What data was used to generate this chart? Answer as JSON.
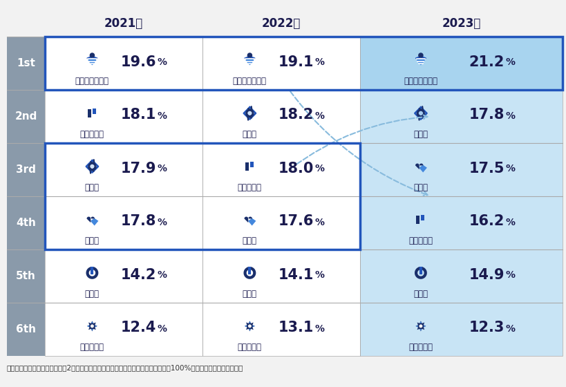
{
  "title_2021": "2021年",
  "title_2022": "2022年",
  "title_2023": "2023年",
  "ranks": [
    "1st",
    "2nd",
    "3rd",
    "4th",
    "5th",
    "6th"
  ],
  "data": [
    {
      "rank": "1st",
      "col2021": {
        "label": "パーソナライズ",
        "value": "19.6"
      },
      "col2022": {
        "label": "パーソナライズ",
        "value": "19.1"
      },
      "col2023": {
        "label": "パーソナライズ",
        "value": "21.2"
      }
    },
    {
      "rank": "2nd",
      "col2021": {
        "label": "期待の充足",
        "value": "18.1"
      },
      "col2022": {
        "label": "誠実性",
        "value": "18.2"
      },
      "col2023": {
        "label": "誠実性",
        "value": "17.8"
      }
    },
    {
      "rank": "3rd",
      "col2021": {
        "label": "誠実性",
        "value": "17.9"
      },
      "col2022": {
        "label": "期待の充足",
        "value": "18.0"
      },
      "col2023": {
        "label": "親密性",
        "value": "17.5"
      }
    },
    {
      "rank": "4th",
      "col2021": {
        "label": "親密性",
        "value": "17.8"
      },
      "col2022": {
        "label": "親密性",
        "value": "17.6"
      },
      "col2023": {
        "label": "期待の充足",
        "value": "16.2"
      }
    },
    {
      "rank": "5th",
      "col2021": {
        "label": "利便性",
        "value": "14.2"
      },
      "col2022": {
        "label": "利便性",
        "value": "14.1"
      },
      "col2023": {
        "label": "利便性",
        "value": "14.9"
      }
    },
    {
      "rank": "6th",
      "col2021": {
        "label": "問題解決力",
        "value": "12.4"
      },
      "col2022": {
        "label": "問題解決力",
        "value": "13.1"
      },
      "col2023": {
        "label": "問題解決力",
        "value": "12.3"
      }
    }
  ],
  "note": "（注）表記数値は小数点以下第2位を四捨五入しているため、パーセンテージ合計は100%とならない場合があります",
  "colors": {
    "rank_bg": "#8a9aaa",
    "rank_text": "#ffffff",
    "header_text": "#1a1a4e",
    "border_blue": "#2255bb",
    "cell_bg_white": "#ffffff",
    "cell_bg_blue_light": "#ddeeff",
    "cell_bg_2023_normal": "#c8e4f5",
    "cell_bg_2023_1st": "#a8d4ef",
    "icon_dark": "#1a2f6b",
    "icon_mid": "#2255bb",
    "icon_light": "#4488dd",
    "arrow_color": "#88bbdd",
    "note_text": "#333333",
    "row_sep": "#aaaaaa",
    "bg": "#f2f2f2"
  }
}
